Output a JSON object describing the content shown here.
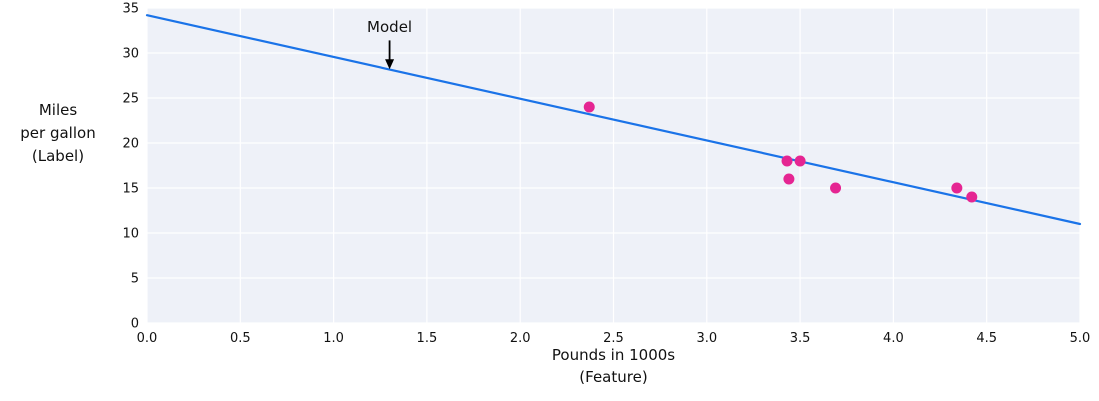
{
  "chart_data": {
    "type": "scatter",
    "title": "",
    "xlabel": "Pounds in 1000s\n(Feature)",
    "ylabel": "Miles\nper gallon\n(Label)",
    "xlim": [
      0.0,
      5.0
    ],
    "ylim": [
      0,
      35
    ],
    "x_tick_labels": [
      "0.0",
      "0.5",
      "1.0",
      "1.5",
      "2.0",
      "2.5",
      "3.0",
      "3.5",
      "4.0",
      "4.5",
      "5.0"
    ],
    "y_tick_labels": [
      "0",
      "5",
      "10",
      "15",
      "20",
      "25",
      "30",
      "35"
    ],
    "grid": true,
    "legend": "none",
    "points": [
      {
        "x": 2.37,
        "y": 24
      },
      {
        "x": 3.43,
        "y": 18
      },
      {
        "x": 3.5,
        "y": 18
      },
      {
        "x": 3.44,
        "y": 16
      },
      {
        "x": 3.69,
        "y": 15
      },
      {
        "x": 4.34,
        "y": 15
      },
      {
        "x": 4.42,
        "y": 14
      }
    ],
    "line": {
      "name": "Model",
      "x0": 0.0,
      "y0": 34.2,
      "x1": 5.0,
      "y1": 11.0
    },
    "annotation": {
      "text": "Model",
      "x": 1.3,
      "text_y": 32.9,
      "arrow_from_y": 31.4,
      "arrow_to_y": 28.2
    },
    "colors": {
      "line": "#1a73e8",
      "points": "#e52592",
      "plot_bg": "#eef1f8",
      "grid": "#ffffff",
      "text": "#111111",
      "arrow": "#000000"
    }
  }
}
